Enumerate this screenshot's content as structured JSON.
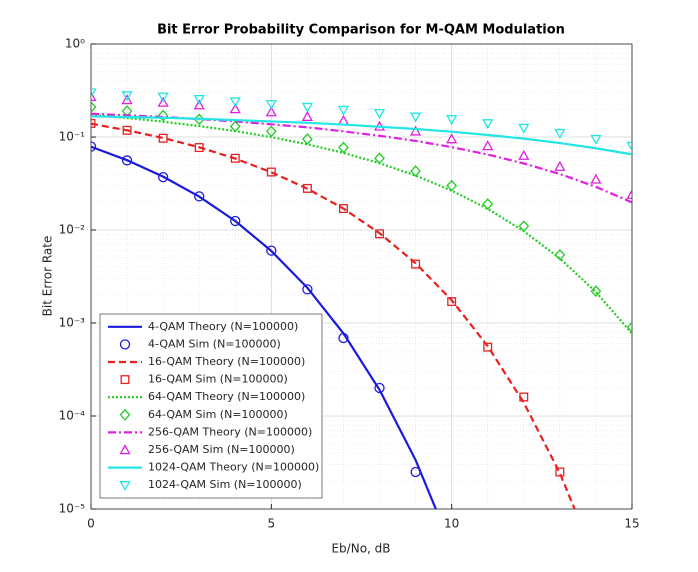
{
  "chart_data": {
    "type": "line",
    "title": "Bit Error Probability Comparison for M-QAM Modulation",
    "x_label": "Eb/No, dB",
    "y_label": "Bit Error Rate",
    "x": [
      0,
      1,
      2,
      3,
      4,
      5,
      6,
      7,
      8,
      9,
      10,
      11,
      12,
      13,
      14,
      15
    ],
    "xlim": [
      0,
      15
    ],
    "xticks": [
      0,
      5,
      10,
      15
    ],
    "ylim": [
      1e-05,
      1
    ],
    "y_scale": "log",
    "yticks": [
      {
        "value": 1,
        "label": "10⁰"
      },
      {
        "value": 0.1,
        "label": "10⁻¹"
      },
      {
        "value": 0.01,
        "label": "10⁻²"
      },
      {
        "value": 0.001,
        "label": "10⁻³"
      },
      {
        "value": 0.0001,
        "label": "10⁻⁴"
      },
      {
        "value": 1e-05,
        "label": "10⁻⁵"
      }
    ],
    "grid": true,
    "minor_grid": true,
    "legend_position": "lower-left",
    "series": [
      {
        "name": "4-QAM Theory (N=100000)",
        "color": "#1a1adf",
        "style": "solid",
        "marker": "none",
        "values": [
          0.0786,
          0.0563,
          0.0375,
          0.0229,
          0.0125,
          0.00595,
          0.00239,
          0.000773,
          0.000191,
          3.36e-05,
          3.87e-06,
          null,
          null,
          null,
          null,
          null
        ]
      },
      {
        "name": "4-QAM Sim (N=100000)",
        "color": "#1a1adf",
        "style": "none",
        "marker": "circle",
        "values": [
          0.079,
          0.056,
          0.037,
          0.023,
          0.0125,
          0.006,
          0.0023,
          0.00069,
          0.0002,
          2.5e-05,
          null,
          null,
          null,
          null,
          null,
          null
        ]
      },
      {
        "name": "16-QAM Theory (N=100000)",
        "color": "#e8201f",
        "style": "dashed",
        "marker": "none",
        "values": [
          0.139,
          0.118,
          0.0976,
          0.0775,
          0.0586,
          0.0418,
          0.0278,
          0.017,
          0.00924,
          0.00439,
          0.00176,
          0.000564,
          0.000139,
          2.43e-05,
          2.76e-06,
          null
        ]
      },
      {
        "name": "16-QAM Sim (N=100000)",
        "color": "#e8201f",
        "style": "none",
        "marker": "square",
        "values": [
          0.14,
          0.118,
          0.097,
          0.077,
          0.059,
          0.042,
          0.028,
          0.017,
          0.0091,
          0.0043,
          0.0017,
          0.00055,
          0.00016,
          2.5e-05,
          null,
          null
        ]
      },
      {
        "name": "64-QAM Theory (N=100000)",
        "color": "#22cc22",
        "style": "dotted",
        "marker": "none",
        "values": [
          0.173,
          0.16,
          0.146,
          0.131,
          0.116,
          0.0997,
          0.0835,
          0.0675,
          0.0523,
          0.0385,
          0.0265,
          0.0169,
          0.00972,
          0.00494,
          0.00215,
          0.00077
        ]
      },
      {
        "name": "64-QAM Sim (N=100000)",
        "color": "#22cc22",
        "style": "none",
        "marker": "diamond",
        "values": [
          0.21,
          0.19,
          0.17,
          0.155,
          0.13,
          0.115,
          0.095,
          0.077,
          0.059,
          0.043,
          0.03,
          0.019,
          0.011,
          0.0054,
          0.0022,
          0.0009
        ]
      },
      {
        "name": "256-QAM Theory (N=100000)",
        "color": "#e020e0",
        "style": "dashdot",
        "marker": "none",
        "values": [
          0.178,
          0.171,
          0.164,
          0.156,
          0.147,
          0.137,
          0.127,
          0.115,
          0.103,
          0.0908,
          0.0778,
          0.0648,
          0.052,
          0.04,
          0.0291,
          0.0198
        ]
      },
      {
        "name": "256-QAM Sim (N=100000)",
        "color": "#e020e0",
        "style": "none",
        "marker": "triangle-up",
        "values": [
          0.27,
          0.25,
          0.235,
          0.22,
          0.2,
          0.185,
          0.165,
          0.15,
          0.13,
          0.115,
          0.095,
          0.08,
          0.063,
          0.048,
          0.035,
          0.024
        ]
      },
      {
        "name": "1024-QAM Theory (N=100000)",
        "color": "#22e6e6",
        "style": "solid",
        "marker": "none",
        "values": [
          0.167,
          0.164,
          0.161,
          0.157,
          0.152,
          0.147,
          0.142,
          0.136,
          0.129,
          0.122,
          0.114,
          0.105,
          0.096,
          0.0861,
          0.0757,
          0.065
        ]
      },
      {
        "name": "1024-QAM Sim (N=100000)",
        "color": "#22e6e6",
        "style": "none",
        "marker": "triangle-down",
        "values": [
          0.3,
          0.28,
          0.27,
          0.255,
          0.24,
          0.225,
          0.21,
          0.195,
          0.18,
          0.165,
          0.155,
          0.14,
          0.125,
          0.11,
          0.095,
          0.08
        ]
      }
    ]
  }
}
